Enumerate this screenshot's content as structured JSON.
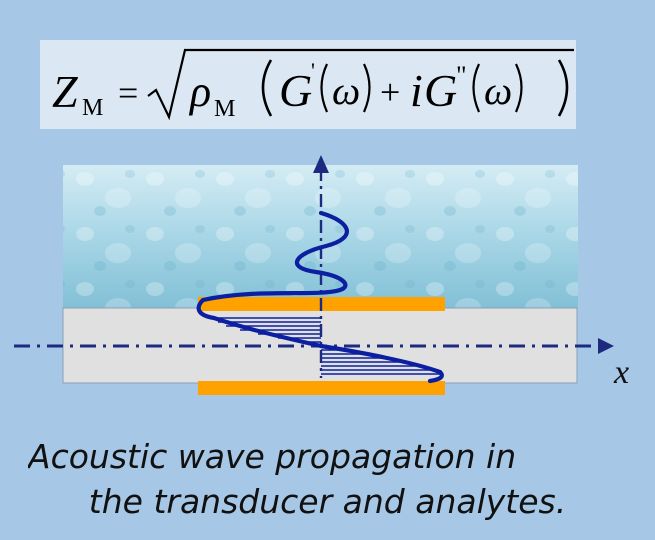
{
  "formula": {
    "lhs": "Z",
    "lhs_sub": "M",
    "equals": "=",
    "rho": "ρ",
    "rho_sub": "M",
    "G_prime": "G",
    "prime": "'",
    "omega": "ω",
    "plus": "+",
    "i": "i",
    "G_double_prime": "G",
    "double_prime": "\""
  },
  "axis_label_x": "x",
  "caption": {
    "line1": "Acoustic wave propagation in",
    "line2": "the transducer and analytes."
  },
  "colors": {
    "background": "#a7c7e6",
    "formula_box": "#dbe8f4",
    "liquid": "#9fd0e0",
    "transducer": "#e0e0e0",
    "electrode": "#ffa200",
    "wave": "#0b1fa0",
    "axis": "#1c2a80"
  }
}
